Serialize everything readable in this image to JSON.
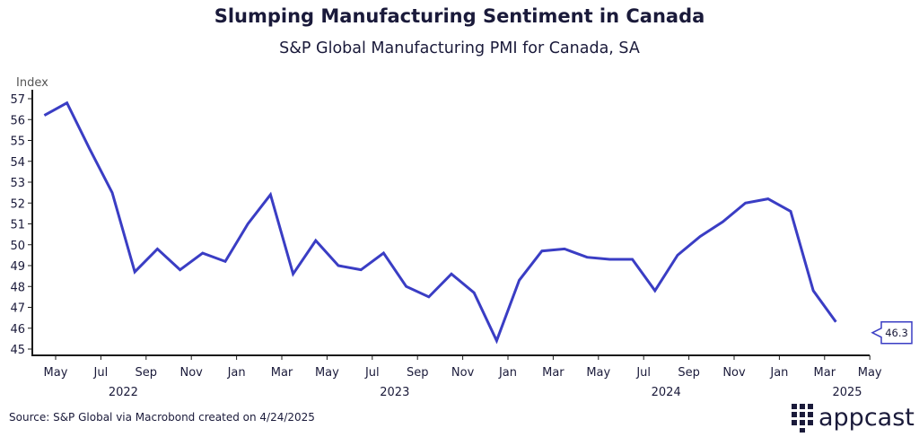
{
  "title": "Slumping Manufacturing Sentiment in Canada",
  "subtitle": "S&P Global Manufacturing PMI for Canada, SA",
  "source": "Source: S&P Global via Macrobond created on 4/24/2025",
  "logo_text": "appcast",
  "colors": {
    "line": "#3a3dc4",
    "text": "#1a1a3a",
    "axis": "#1a1a1a"
  },
  "chart_data": {
    "type": "line",
    "title": "Slumping Manufacturing Sentiment in Canada",
    "subtitle": "S&P Global Manufacturing PMI for Canada, SA",
    "ylabel": "Index",
    "xlabel": "",
    "ylim": [
      45,
      57
    ],
    "yticks": [
      45,
      46,
      47,
      48,
      49,
      50,
      51,
      52,
      53,
      54,
      55,
      56,
      57
    ],
    "xtick_labels": [
      "May",
      "Jul",
      "Sep",
      "Nov",
      "Jan",
      "Mar",
      "May",
      "Jul",
      "Sep",
      "Nov",
      "Jan",
      "Mar",
      "May",
      "Jul",
      "Sep",
      "Nov",
      "Jan",
      "Mar",
      "May"
    ],
    "year_labels": [
      {
        "label": "2022",
        "tick": 1
      },
      {
        "label": "2023",
        "tick": 7
      },
      {
        "label": "2024",
        "tick": 13
      },
      {
        "label": "2025",
        "tick": 17.5
      }
    ],
    "grid": false,
    "series": [
      {
        "name": "S&P Global Manufacturing PMI for Canada, SA",
        "start": "2022-04",
        "x": [
          "2022-04",
          "2022-05",
          "2022-06",
          "2022-07",
          "2022-08",
          "2022-09",
          "2022-10",
          "2022-11",
          "2022-12",
          "2023-01",
          "2023-02",
          "2023-03",
          "2023-04",
          "2023-05",
          "2023-06",
          "2023-07",
          "2023-08",
          "2023-09",
          "2023-10",
          "2023-11",
          "2023-12",
          "2024-01",
          "2024-02",
          "2024-03",
          "2024-04",
          "2024-05",
          "2024-06",
          "2024-07",
          "2024-08",
          "2024-09",
          "2024-10",
          "2024-11",
          "2024-12",
          "2025-01",
          "2025-02",
          "2025-03"
        ],
        "values": [
          56.2,
          56.8,
          54.6,
          52.5,
          48.7,
          49.8,
          48.8,
          49.6,
          49.2,
          51.0,
          52.4,
          48.6,
          50.2,
          49.0,
          48.8,
          49.6,
          48.0,
          47.5,
          48.6,
          47.7,
          45.4,
          48.3,
          49.7,
          49.8,
          49.4,
          49.3,
          49.3,
          47.8,
          49.5,
          50.4,
          51.1,
          52.0,
          52.2,
          51.6,
          47.8,
          46.3
        ]
      }
    ],
    "annotations": [
      {
        "text": "46.3",
        "point": "2025-03"
      }
    ]
  }
}
